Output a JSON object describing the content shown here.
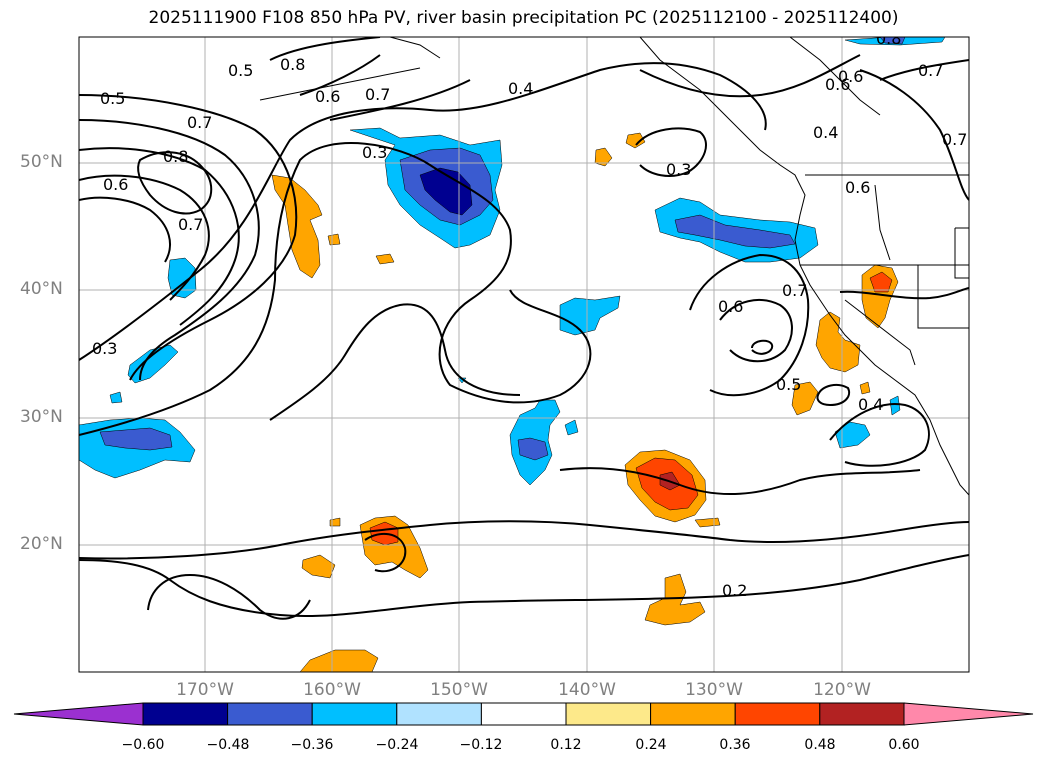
{
  "title": "2025111900 F108 850 hPa PV, river basin precipitation PC (2025112100 - 2025112400)",
  "map": {
    "lat_labels": [
      "50°N",
      "40°N",
      "30°N",
      "20°N"
    ],
    "lon_labels": [
      "170°W",
      "160°W",
      "150°W",
      "140°W",
      "130°W",
      "120°W"
    ],
    "contour_labels": [
      "0.5",
      "0.5",
      "0.8",
      "0.7",
      "0.6",
      "0.7",
      "0.8",
      "0.6",
      "0.7",
      "0.3",
      "0.3",
      "0.4",
      "0.3",
      "0.4",
      "0.6",
      "0.7",
      "0.6",
      "0.7",
      "0.6",
      "0.7",
      "0.5",
      "0.4",
      "0.2",
      "0.8",
      "0.6"
    ]
  },
  "colorbar": {
    "colors": [
      "#9b30d0",
      "#000090",
      "#3a5bd0",
      "#00bfff",
      "#b0e2ff",
      "#ffffff",
      "#fde98a",
      "#ffa500",
      "#ff4500",
      "#b22222",
      "#ff88aa"
    ],
    "tick_labels": [
      "−0.60",
      "−0.48",
      "−0.36",
      "−0.24",
      "−0.12",
      "0.12",
      "0.24",
      "0.36",
      "0.48",
      "0.60"
    ]
  }
}
